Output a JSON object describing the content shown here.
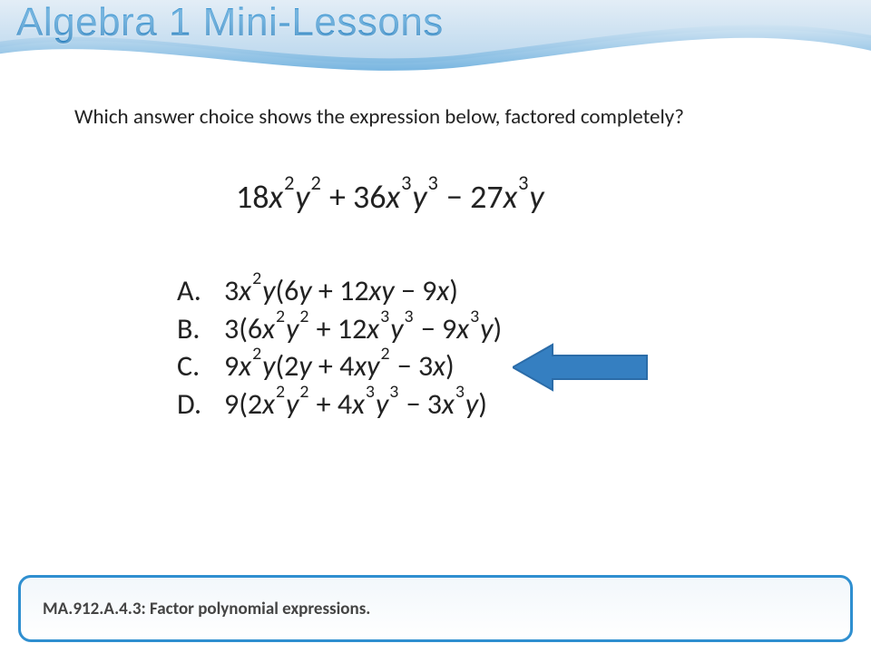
{
  "title": "Algebra 1 Mini-Lessons",
  "question": "Which answer choice shows the expression below, factored completely?",
  "expression_html": "18<span class='it'>x</span><span class='exp'>2</span><span class='it'>y</span><span class='exp'>2</span> + 36<span class='it'>x</span><span class='exp'>3</span><span class='it'>y</span><span class='exp'>3</span> − 27<span class='it'>x</span><span class='exp'>3</span><span class='it'>y</span>",
  "choices": [
    {
      "letter": "A.",
      "html": "3<span class='it'>x</span><span class='exp'>2</span><span class='it'>y</span>(6<span class='it'>y</span> + 12<span class='it'>xy</span> − 9<span class='it'>x</span>)"
    },
    {
      "letter": "B.",
      "html": "3(6<span class='it'>x</span><span class='exp'>2</span><span class='it'>y</span><span class='exp'>2</span> + 12<span class='it'>x</span><span class='exp'>3</span><span class='it'>y</span><span class='exp'>3</span> − 9<span class='it'>x</span><span class='exp'>3</span><span class='it'>y</span>)"
    },
    {
      "letter": "C.",
      "html": "9<span class='it'>x</span><span class='exp'>2</span><span class='it'>y</span>(2<span class='it'>y</span> + 4<span class='it'>xy</span><span class='exp'>2</span> − 3<span class='it'>x</span>)"
    },
    {
      "letter": "D.",
      "html": "9(2<span class='it'>x</span><span class='exp'>2</span><span class='it'>y</span><span class='exp'>2</span> + 4<span class='it'>x</span><span class='exp'>3</span><span class='it'>y</span><span class='exp'>3</span> − 3<span class='it'>x</span><span class='exp'>3</span><span class='it'>y</span>)"
    }
  ],
  "correct_index": 2,
  "arrow_color": "#357fc1",
  "arrow_outline": "#2b6ca8",
  "footer": "MA.912.A.4.3: Factor polynomial expressions.",
  "colors": {
    "title_gradient_top": "#3a94d1",
    "title_gradient_bottom": "#0b6cb3",
    "swoosh_wave_top": "#c7dff1",
    "swoosh_wave_bottom": "#5aa5d8",
    "footer_border": "#2f8fd0",
    "footer_bg_top": "#f2f7fb",
    "text": "#222222"
  }
}
